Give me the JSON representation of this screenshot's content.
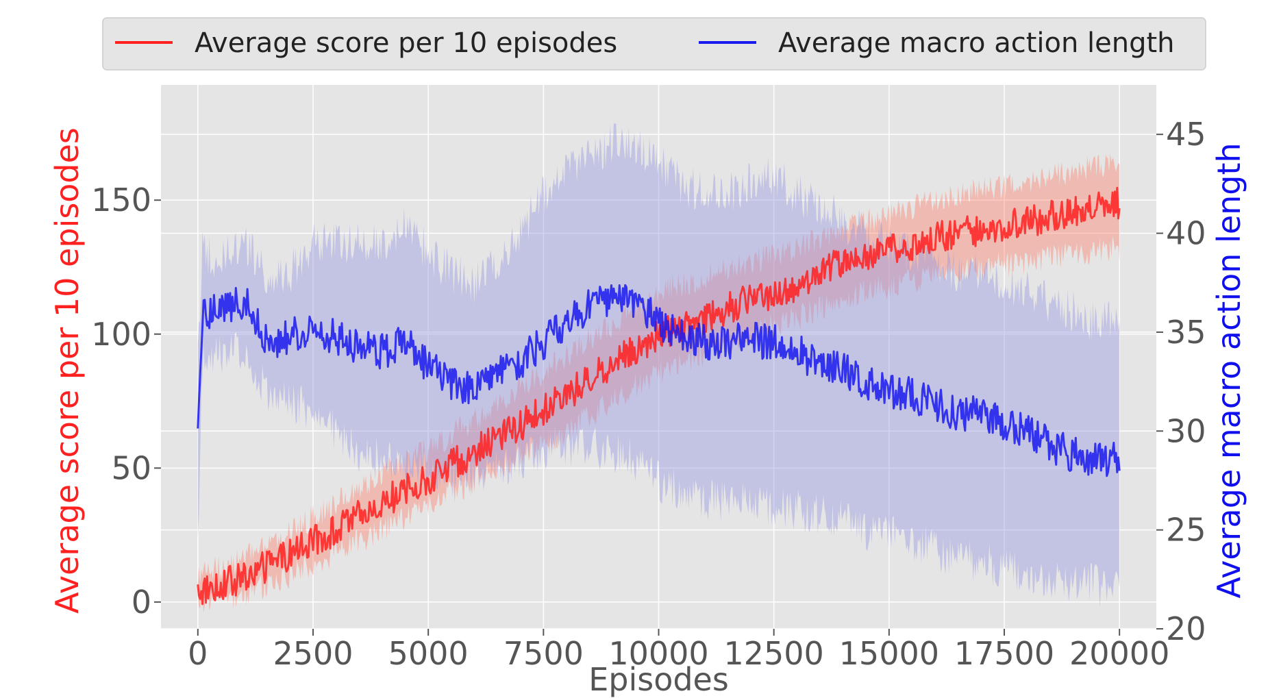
{
  "chart_data": {
    "type": "line",
    "title": "",
    "xlabel": "Episodes",
    "ylabel_left": "Average score per 10 episodes",
    "ylabel_right": "Average macro action length",
    "xlim": [
      -800,
      20800
    ],
    "ylim_left": [
      -10,
      193
    ],
    "ylim_right": [
      20,
      47.5
    ],
    "x_ticks": [
      0,
      2500,
      5000,
      7500,
      10000,
      12500,
      15000,
      17500,
      20000
    ],
    "x_tick_labels": [
      "0",
      "2500",
      "5000",
      "7500",
      "10000",
      "12500",
      "15000",
      "17500",
      "20000"
    ],
    "y_left_ticks": [
      0,
      50,
      100,
      150
    ],
    "y_left_tick_labels": [
      "0",
      "50",
      "100",
      "150"
    ],
    "y_right_ticks": [
      20,
      25,
      30,
      35,
      40,
      45
    ],
    "y_right_tick_labels": [
      "20",
      "25",
      "30",
      "35",
      "40",
      "45"
    ],
    "grid": true,
    "legend_position": "top-center",
    "series": [
      {
        "name": "Average score per 10 episodes",
        "axis": "left",
        "color": "#ff2020",
        "band_color": "#ff6a50",
        "x": [
          0,
          1000,
          2000,
          3000,
          4000,
          5000,
          6000,
          7000,
          8000,
          9000,
          10000,
          11000,
          12000,
          13000,
          14000,
          15000,
          16000,
          17000,
          18000,
          19000,
          20000
        ],
        "values": [
          4,
          9,
          18,
          27,
          37,
          46,
          56,
          66,
          77,
          89,
          100,
          106,
          113,
          118,
          127,
          131,
          136,
          139,
          142,
          146,
          149
        ],
        "band_lower": [
          0,
          3,
          10,
          18,
          27,
          36,
          45,
          54,
          64,
          75,
          86,
          93,
          100,
          106,
          114,
          118,
          122,
          125,
          127,
          130,
          132
        ],
        "band_upper": [
          10,
          16,
          26,
          37,
          48,
          57,
          68,
          80,
          92,
          104,
          116,
          121,
          127,
          132,
          140,
          144,
          150,
          154,
          157,
          161,
          165
        ]
      },
      {
        "name": "Average macro action length",
        "axis": "right",
        "color": "#1a1aee",
        "band_color": "#9a9ae0",
        "x": [
          0,
          100,
          500,
          1000,
          1500,
          2000,
          2500,
          3000,
          3500,
          4000,
          4500,
          5000,
          5500,
          6000,
          6500,
          7000,
          7500,
          8000,
          8500,
          9000,
          9500,
          10000,
          10500,
          11000,
          11500,
          12000,
          12500,
          13000,
          13500,
          14000,
          14500,
          15000,
          15500,
          16000,
          16500,
          17000,
          17500,
          18000,
          18500,
          19000,
          19500,
          20000
        ],
        "values": [
          31,
          36,
          36.2,
          36.6,
          34.5,
          34.8,
          35.2,
          34.7,
          34.2,
          34.0,
          34.5,
          33.2,
          32.5,
          32.0,
          32.8,
          33.5,
          34.5,
          35.5,
          36.3,
          36.8,
          36.5,
          35.5,
          35.0,
          34.5,
          34.5,
          34.6,
          34.5,
          34.0,
          33.4,
          33.1,
          32.5,
          32.0,
          31.8,
          31.4,
          30.8,
          31.0,
          30.4,
          29.9,
          29.3,
          28.8,
          28.5,
          28.6
        ],
        "band_lower": [
          24,
          33.5,
          34,
          34,
          32,
          31.5,
          31,
          30,
          29,
          28.5,
          28.5,
          28,
          27.7,
          27.5,
          28,
          28.5,
          29,
          29.2,
          29.2,
          29,
          28.5,
          27.5,
          27,
          26.5,
          26.5,
          26.3,
          26.3,
          26,
          25.8,
          25.5,
          25,
          24.8,
          24.5,
          24,
          23.6,
          23.3,
          23.1,
          22.8,
          22.6,
          22.4,
          22.2,
          22.0
        ],
        "band_upper": [
          34,
          39,
          38.5,
          39.5,
          38,
          38,
          39.5,
          39.5,
          39.5,
          39.5,
          40.5,
          39,
          38,
          37.5,
          38.5,
          40,
          42,
          43,
          44,
          44.5,
          44.5,
          43.5,
          42.5,
          42,
          42,
          42.5,
          43,
          42,
          41.5,
          40.5,
          40,
          39.5,
          39,
          38.5,
          38,
          38.3,
          37.5,
          37,
          36.5,
          36,
          35.5,
          35.5
        ]
      }
    ]
  }
}
